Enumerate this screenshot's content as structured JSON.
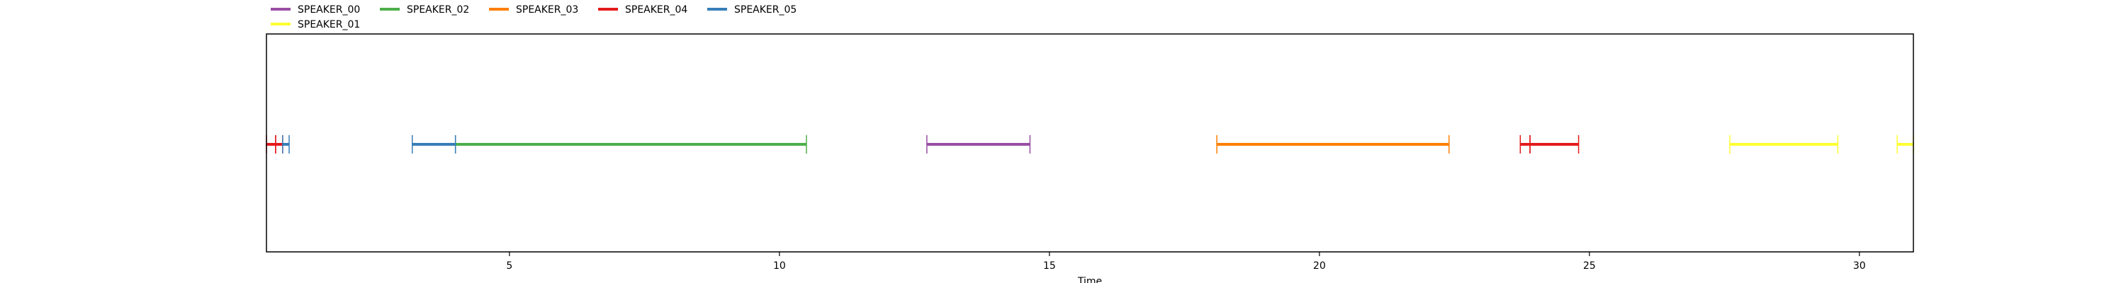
{
  "chart_data": {
    "type": "timeline",
    "xlabel": "Time",
    "xlim": [
      0.5,
      31.0
    ],
    "xticks": [
      5,
      10,
      15,
      20,
      25,
      30
    ],
    "xtick_labels": [
      "5",
      "10",
      "15",
      "20",
      "25",
      "30"
    ],
    "legend_placement": "top-left, above plot",
    "series": [
      {
        "name": "SPEAKER_00",
        "color": "#984ea3",
        "segments": [
          [
            12.73,
            14.64
          ]
        ]
      },
      {
        "name": "SPEAKER_01",
        "color": "#ffff33",
        "segments": [
          [
            27.6,
            29.6
          ],
          [
            30.7,
            31.0
          ]
        ]
      },
      {
        "name": "SPEAKER_02",
        "color": "#4daf4a",
        "segments": [
          [
            4.0,
            10.5
          ]
        ]
      },
      {
        "name": "SPEAKER_03",
        "color": "#ff7f00",
        "segments": [
          [
            18.1,
            22.4
          ]
        ]
      },
      {
        "name": "SPEAKER_04",
        "color": "#e41a1c",
        "segments": [
          [
            0.5,
            0.67
          ],
          [
            0.67,
            0.8
          ],
          [
            23.72,
            23.9
          ],
          [
            23.9,
            24.8
          ]
        ]
      },
      {
        "name": "SPEAKER_05",
        "color": "#377eb8",
        "segments": [
          [
            0.8,
            0.92
          ],
          [
            3.2,
            4.0
          ]
        ]
      }
    ]
  }
}
